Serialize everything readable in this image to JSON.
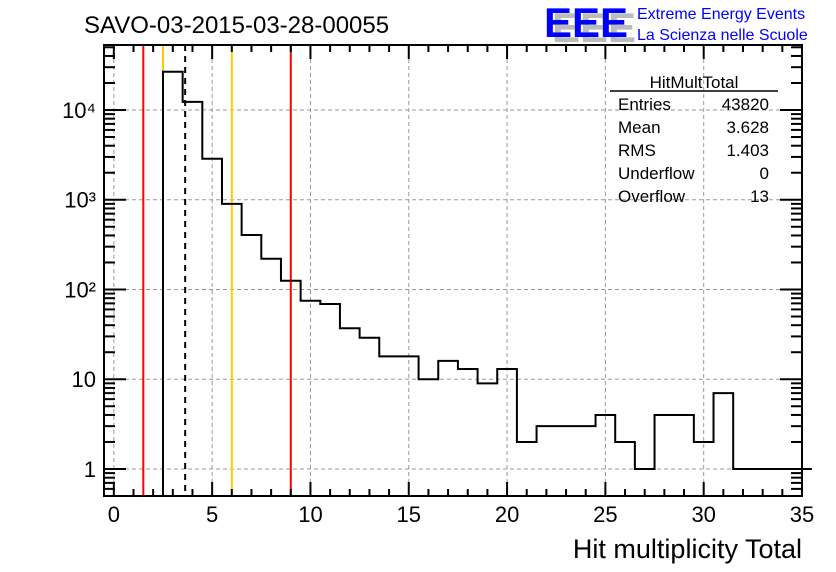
{
  "title": "SAVO-03-2015-03-28-00055",
  "logo": {
    "letters": "EEE",
    "line1": "Extreme Energy Events",
    "line2": "La Scienza nelle Scuole",
    "color": "#0000ff"
  },
  "stats": {
    "name": "HitMultTotal",
    "rows": [
      {
        "label": "Entries",
        "value": "43820"
      },
      {
        "label": "Mean",
        "value": "3.628"
      },
      {
        "label": "RMS",
        "value": "1.403"
      },
      {
        "label": "Underflow",
        "value": "0"
      },
      {
        "label": "Overflow",
        "value": "13"
      }
    ]
  },
  "chart_data": {
    "type": "histogram",
    "title": "SAVO-03-2015-03-28-00055",
    "xlabel": "Hit multiplicity Total",
    "ylabel": "",
    "xlim": [
      -0.5,
      35
    ],
    "ylim": [
      0.5,
      53000
    ],
    "yscale": "log",
    "grid": true,
    "bin_width": 1,
    "bin_low_edges": [
      2.5,
      3.5,
      4.5,
      5.5,
      6.5,
      7.5,
      8.5,
      9.5,
      10.5,
      11.5,
      12.5,
      13.5,
      14.5,
      15.5,
      16.5,
      17.5,
      18.5,
      19.5,
      20.5,
      21.5,
      22.5,
      23.5,
      24.5,
      25.5,
      26.5,
      27.5,
      28.5,
      29.5,
      30.5,
      31.5,
      32.5,
      33.5,
      34.5
    ],
    "values": [
      26700,
      12300,
      2860,
      900,
      405,
      220,
      125,
      75,
      69,
      37,
      29,
      18,
      18,
      10,
      16,
      13,
      9,
      13,
      2,
      3,
      3,
      3,
      4,
      2,
      1,
      4,
      4,
      2,
      7,
      1,
      1,
      1,
      1
    ],
    "xticks": [
      "0",
      "5",
      "10",
      "15",
      "20",
      "25",
      "30",
      "35"
    ],
    "yticks": [
      "1",
      "10",
      "10²",
      "10³",
      "10⁴"
    ],
    "vertical_lines": [
      {
        "x": 1.5,
        "color": "#ff0000",
        "style": "solid"
      },
      {
        "x": 9.0,
        "color": "#ff0000",
        "style": "solid"
      },
      {
        "x": 2.5,
        "color": "#ffcc00",
        "style": "solid"
      },
      {
        "x": 6.0,
        "color": "#ffcc00",
        "style": "solid"
      },
      {
        "x": 3.628,
        "color": "#000000",
        "style": "dashed"
      }
    ],
    "legend": "top-right"
  }
}
